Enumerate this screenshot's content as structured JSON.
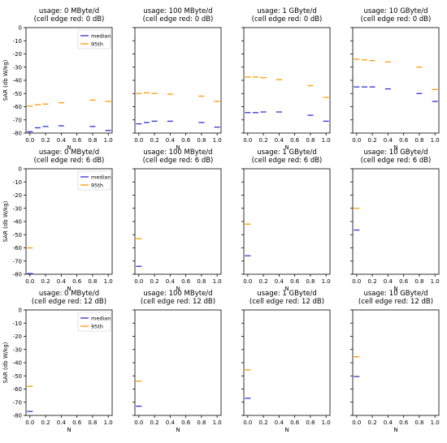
{
  "figure": {
    "legend": {
      "median": "median",
      "p95": "95th"
    },
    "colors": {
      "median": "#3333cc",
      "p95": "#ff9900",
      "axis": "#000000"
    },
    "ylabel": "SAR (db W/kg)",
    "xlabel": "N"
  },
  "chart_data": [
    {
      "type": "scatter",
      "row": 0,
      "col": 0,
      "title": [
        "usage: 0 MByte/d",
        "(cell edge red: 0 dB)"
      ],
      "xlabel": "N",
      "ylabel": "SAR (db W/kg)",
      "xlim": [
        -0.05,
        1.05
      ],
      "ylim": [
        -80,
        0
      ],
      "xticks": [
        "0.0",
        "0.2",
        "0.4",
        "0.6",
        "0.8",
        "1.0"
      ],
      "yticks": [
        "0",
        "-10",
        "-20",
        "-30",
        "-40",
        "-50",
        "-60",
        "-70",
        "-80"
      ],
      "legend": true,
      "legend_position": "top-right",
      "series": [
        {
          "name": "median",
          "x": [
            0.0,
            0.1,
            0.2,
            0.4,
            0.8,
            1.0
          ],
          "y": [
            -79,
            -76,
            -75,
            -74.5,
            -75,
            -78
          ]
        },
        {
          "name": "95th",
          "x": [
            0.0,
            0.1,
            0.2,
            0.4,
            0.8,
            1.0
          ],
          "y": [
            -59.5,
            -58.5,
            -58,
            -57,
            -55,
            -56
          ]
        }
      ]
    },
    {
      "type": "scatter",
      "row": 0,
      "col": 1,
      "title": [
        "usage: 100 MByte/d",
        "(cell edge red: 0 dB)"
      ],
      "xlabel": "N",
      "xlim": [
        -0.05,
        1.05
      ],
      "ylim": [
        -80,
        0
      ],
      "xticks": [
        "0.0",
        "0.2",
        "0.4",
        "0.6",
        "0.8",
        "1.0"
      ],
      "legend": false,
      "series": [
        {
          "name": "median",
          "x": [
            0.0,
            0.1,
            0.2,
            0.4,
            0.8,
            1.0
          ],
          "y": [
            -73,
            -72,
            -71,
            -71,
            -72,
            -75.5
          ]
        },
        {
          "name": "95th",
          "x": [
            0.0,
            0.1,
            0.2,
            0.4,
            0.8,
            1.0
          ],
          "y": [
            -50,
            -49.5,
            -50,
            -50.5,
            -52,
            -56
          ]
        }
      ]
    },
    {
      "type": "scatter",
      "row": 0,
      "col": 2,
      "title": [
        "usage: 1 GByte/d",
        "(cell edge red: 0 dB)"
      ],
      "xlabel": "N",
      "xlim": [
        -0.05,
        1.05
      ],
      "ylim": [
        -80,
        0
      ],
      "xticks": [
        "0.0",
        "0.2",
        "0.4",
        "0.6",
        "0.8",
        "1.0"
      ],
      "legend": false,
      "series": [
        {
          "name": "median",
          "x": [
            0.0,
            0.1,
            0.2,
            0.4,
            0.8,
            1.0
          ],
          "y": [
            -64.5,
            -64.5,
            -64,
            -64,
            -66.5,
            -71
          ]
        },
        {
          "name": "95th",
          "x": [
            0.0,
            0.1,
            0.2,
            0.4,
            0.8,
            1.0
          ],
          "y": [
            -37.5,
            -37.5,
            -38,
            -39.5,
            -44,
            -53
          ]
        }
      ]
    },
    {
      "type": "scatter",
      "row": 0,
      "col": 3,
      "title": [
        "usage: 10 GByte/d",
        "(cell edge red: 0 dB)"
      ],
      "xlabel": "N",
      "xlim": [
        -0.05,
        1.05
      ],
      "ylim": [
        -80,
        0
      ],
      "xticks": [
        "0.0",
        "0.2",
        "0.4",
        "0.6",
        "0.8",
        "1.0"
      ],
      "legend": false,
      "series": [
        {
          "name": "median",
          "x": [
            0.0,
            0.1,
            0.2,
            0.4,
            0.8,
            1.0
          ],
          "y": [
            -45,
            -45,
            -45,
            -46.5,
            -50,
            -56
          ]
        },
        {
          "name": "95th",
          "x": [
            0.0,
            0.1,
            0.2,
            0.4,
            0.8,
            1.0
          ],
          "y": [
            -24,
            -24.5,
            -25,
            -26,
            -30,
            -47
          ]
        }
      ]
    },
    {
      "type": "scatter",
      "row": 1,
      "col": 0,
      "title": [
        "usage: 0 MByte/d",
        "(cell edge red: 6 dB)"
      ],
      "xlabel": "N",
      "ylabel": "SAR (db W/kg)",
      "xlim": [
        -0.05,
        1.05
      ],
      "ylim": [
        -80,
        0
      ],
      "xticks": [
        "0.0",
        "0.2",
        "0.4",
        "0.6",
        "0.8",
        "1.0"
      ],
      "yticks": [
        "0",
        "-10",
        "-20",
        "-30",
        "-40",
        "-50",
        "-60",
        "-70",
        "-80"
      ],
      "legend": true,
      "legend_position": "top-right",
      "series": [
        {
          "name": "median",
          "x": [
            0.0
          ],
          "y": [
            -79.5
          ]
        },
        {
          "name": "95th",
          "x": [
            0.0
          ],
          "y": [
            -60
          ]
        }
      ]
    },
    {
      "type": "scatter",
      "row": 1,
      "col": 1,
      "title": [
        "usage: 100 MByte/d",
        "(cell edge red: 6 dB)"
      ],
      "xlabel": "N",
      "xlim": [
        -0.05,
        1.05
      ],
      "ylim": [
        -80,
        0
      ],
      "xticks": [
        "0.0",
        "0.2",
        "0.4",
        "0.6",
        "0.8",
        "1.0"
      ],
      "legend": false,
      "series": [
        {
          "name": "median",
          "x": [
            0.0
          ],
          "y": [
            -74
          ]
        },
        {
          "name": "95th",
          "x": [
            0.0
          ],
          "y": [
            -53
          ]
        }
      ]
    },
    {
      "type": "scatter",
      "row": 1,
      "col": 2,
      "title": [
        "usage: 1 GByte/d",
        "(cell edge red: 6 dB)"
      ],
      "xlabel": "N",
      "xlim": [
        -0.05,
        1.05
      ],
      "ylim": [
        -80,
        0
      ],
      "xticks": [
        "0.0",
        "0.2",
        "0.4",
        "0.6",
        "0.8",
        "1.0"
      ],
      "legend": false,
      "series": [
        {
          "name": "median",
          "x": [
            0.0
          ],
          "y": [
            -66
          ]
        },
        {
          "name": "95th",
          "x": [
            0.0
          ],
          "y": [
            -42
          ]
        }
      ]
    },
    {
      "type": "scatter",
      "row": 1,
      "col": 3,
      "title": [
        "usage: 10 GByte/d",
        "(cell edge red: 6 dB)"
      ],
      "xlabel": "N",
      "xlim": [
        -0.05,
        1.05
      ],
      "ylim": [
        -80,
        0
      ],
      "xticks": [
        "0.0",
        "0.2",
        "0.4",
        "0.6",
        "0.8",
        "1.0"
      ],
      "legend": false,
      "series": [
        {
          "name": "median",
          "x": [
            0.0
          ],
          "y": [
            -46.5
          ]
        },
        {
          "name": "95th",
          "x": [
            0.0
          ],
          "y": [
            -30
          ]
        }
      ]
    },
    {
      "type": "scatter",
      "row": 2,
      "col": 0,
      "title": [
        "usage: 0 MByte/d",
        "(cell edge red: 12 dB)"
      ],
      "xlabel": "N",
      "ylabel": "SAR (db W/kg)",
      "xlim": [
        -0.05,
        1.05
      ],
      "ylim": [
        -80,
        0
      ],
      "xticks": [
        "0.0",
        "0.2",
        "0.4",
        "0.6",
        "0.8",
        "1.0"
      ],
      "yticks": [
        "0",
        "-10",
        "-20",
        "-30",
        "-40",
        "-50",
        "-60",
        "-70",
        "-80"
      ],
      "legend": true,
      "legend_position": "top-right",
      "series": [
        {
          "name": "median",
          "x": [
            0.0
          ],
          "y": [
            -77
          ]
        },
        {
          "name": "95th",
          "x": [
            0.0
          ],
          "y": [
            -58
          ]
        }
      ]
    },
    {
      "type": "scatter",
      "row": 2,
      "col": 1,
      "title": [
        "usage: 100 MByte/d",
        "(cell edge red: 12 dB)"
      ],
      "xlabel": "N",
      "xlim": [
        -0.05,
        1.05
      ],
      "ylim": [
        -80,
        0
      ],
      "xticks": [
        "0.0",
        "0.2",
        "0.4",
        "0.6",
        "0.8",
        "1.0"
      ],
      "legend": false,
      "series": [
        {
          "name": "median",
          "x": [
            0.0
          ],
          "y": [
            -73
          ]
        },
        {
          "name": "95th",
          "x": [
            0.0
          ],
          "y": [
            -54
          ]
        }
      ]
    },
    {
      "type": "scatter",
      "row": 2,
      "col": 2,
      "title": [
        "usage: 1 GByte/d",
        "(cell edge red: 12 dB)"
      ],
      "xlabel": "N",
      "xlim": [
        -0.05,
        1.05
      ],
      "ylim": [
        -80,
        0
      ],
      "xticks": [
        "0.0",
        "0.2",
        "0.4",
        "0.6",
        "0.8",
        "1.0"
      ],
      "legend": false,
      "series": [
        {
          "name": "median",
          "x": [
            0.0
          ],
          "y": [
            -67
          ]
        },
        {
          "name": "95th",
          "x": [
            0.0
          ],
          "y": [
            -45.5
          ]
        }
      ]
    },
    {
      "type": "scatter",
      "row": 2,
      "col": 3,
      "title": [
        "usage: 10 GByte/d",
        "(cell edge red: 12 dB)"
      ],
      "xlabel": "N",
      "xlim": [
        -0.05,
        1.05
      ],
      "ylim": [
        -80,
        0
      ],
      "xticks": [
        "0.0",
        "0.2",
        "0.4",
        "0.6",
        "0.8",
        "1.0"
      ],
      "legend": false,
      "series": [
        {
          "name": "median",
          "x": [
            0.0
          ],
          "y": [
            -50.5
          ]
        },
        {
          "name": "95th",
          "x": [
            0.0
          ],
          "y": [
            -35.5
          ]
        }
      ]
    }
  ]
}
